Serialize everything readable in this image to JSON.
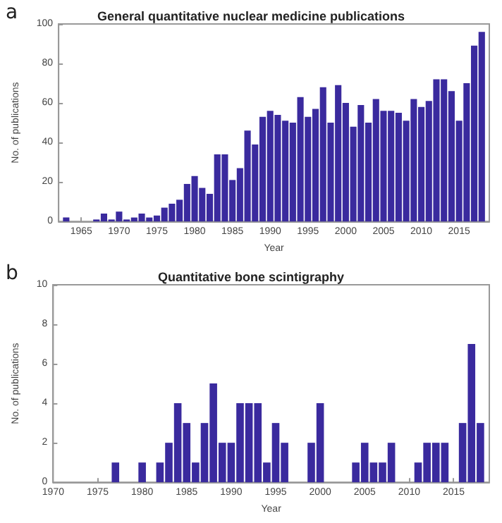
{
  "chart_data": [
    {
      "type": "bar",
      "title": "General quantitative nuclear medicine publications",
      "xlabel": "Year",
      "ylabel": "No. of publications",
      "annotations": [
        "a"
      ],
      "x": [
        1963,
        1964,
        1965,
        1966,
        1967,
        1968,
        1969,
        1970,
        1971,
        1972,
        1973,
        1974,
        1975,
        1976,
        1977,
        1978,
        1979,
        1980,
        1981,
        1982,
        1983,
        1984,
        1985,
        1986,
        1987,
        1988,
        1989,
        1990,
        1991,
        1992,
        1993,
        1994,
        1995,
        1996,
        1997,
        1998,
        1999,
        2000,
        2001,
        2002,
        2003,
        2004,
        2005,
        2006,
        2007,
        2008,
        2009,
        2010,
        2011,
        2012,
        2013,
        2014,
        2015,
        2016,
        2017,
        2018
      ],
      "values": [
        2,
        0,
        0,
        0,
        1,
        4,
        1,
        5,
        1,
        2,
        4,
        2,
        3,
        7,
        9,
        11,
        19,
        23,
        17,
        14,
        34,
        34,
        21,
        27,
        46,
        39,
        53,
        56,
        54,
        51,
        50,
        63,
        53,
        57,
        68,
        50,
        69,
        60,
        48,
        59,
        50,
        62,
        56,
        56,
        55,
        51,
        62,
        58,
        61,
        72,
        72,
        66,
        51,
        70,
        89,
        96
      ],
      "color": "#3a2a9e",
      "xlim": [
        1962,
        2019
      ],
      "xticks": [
        1965,
        1970,
        1975,
        1980,
        1985,
        1990,
        1995,
        2000,
        2005,
        2010,
        2015
      ],
      "ylim": [
        0,
        100
      ],
      "yticks": [
        0,
        20,
        40,
        60,
        80,
        100
      ],
      "grid": false
    },
    {
      "type": "bar",
      "title": "Quantitative bone scintigraphy",
      "xlabel": "Year",
      "ylabel": "No. of publications",
      "annotations": [
        "b"
      ],
      "x": [
        1977,
        1980,
        1982,
        1983,
        1984,
        1985,
        1986,
        1987,
        1988,
        1989,
        1990,
        1991,
        1992,
        1993,
        1994,
        1995,
        1996,
        1999,
        2000,
        2004,
        2005,
        2006,
        2007,
        2008,
        2011,
        2012,
        2013,
        2014,
        2016,
        2017,
        2018
      ],
      "values": [
        1,
        1,
        1,
        2,
        4,
        3,
        1,
        3,
        5,
        2,
        2,
        4,
        4,
        4,
        1,
        3,
        2,
        2,
        4,
        1,
        2,
        1,
        1,
        2,
        1,
        2,
        2,
        2,
        3,
        7,
        3
      ],
      "color": "#3a2a9e",
      "xlim": [
        1970,
        2019
      ],
      "xticks": [
        1970,
        1975,
        1980,
        1985,
        1990,
        1995,
        2000,
        2005,
        2010,
        2015
      ],
      "ylim": [
        0,
        10
      ],
      "yticks": [
        0,
        2,
        4,
        6,
        8,
        10
      ],
      "grid": false
    }
  ]
}
